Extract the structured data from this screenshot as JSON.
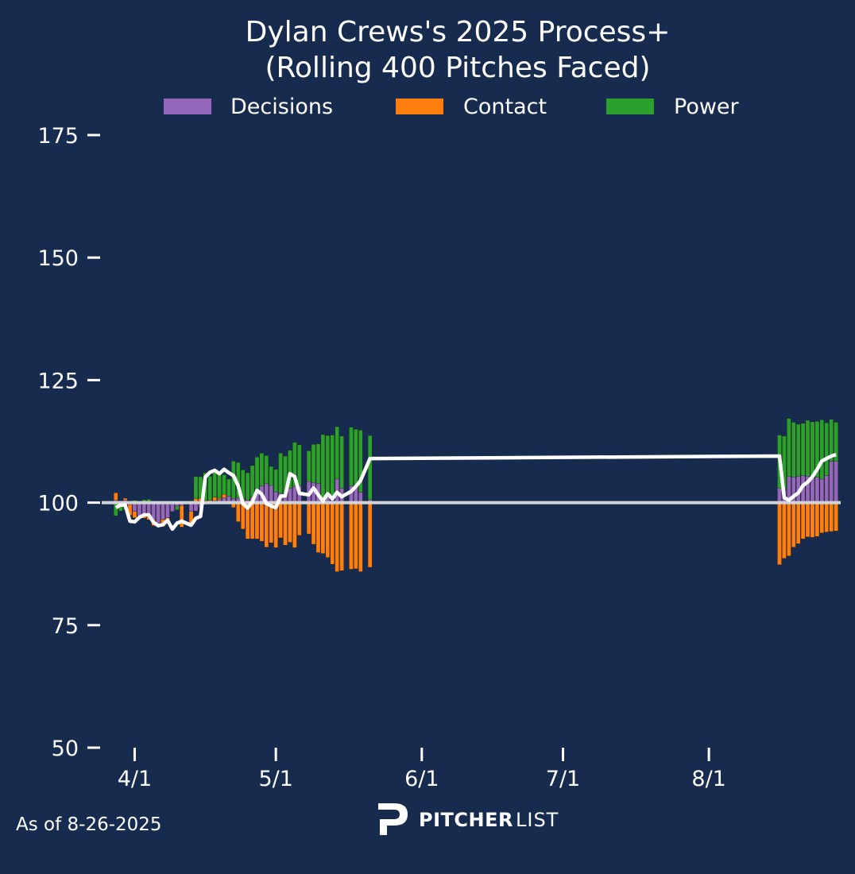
{
  "colors": {
    "background": "#172b4e",
    "decisions": "#9467bd",
    "contact": "#ff7f0e",
    "power": "#2ca02c",
    "line": "#ffffff",
    "baseline": "#d0d3d8"
  },
  "footer": {
    "as_of": "As of 8-26-2025",
    "brand_bold": "PITCHER",
    "brand_light": "LIST",
    "logo_icon": "pitcherlist-p-logo-icon"
  },
  "chart_data": {
    "type": "bar",
    "title_lines": [
      "Dylan Crews's 2025 Process+",
      "(Rolling 400 Pitches Faced)"
    ],
    "legend": [
      "Decisions",
      "Contact",
      "Power"
    ],
    "legend_placement": "top-center",
    "grid": false,
    "ylim": [
      50,
      175
    ],
    "yticks": [
      50,
      75,
      100,
      125,
      150,
      175
    ],
    "baseline": 100,
    "xlim": [
      "2025-03-25",
      "2025-08-29"
    ],
    "xticks": [
      {
        "date": "2025-04-01",
        "label": "4/1"
      },
      {
        "date": "2025-05-01",
        "label": "5/1"
      },
      {
        "date": "2025-06-01",
        "label": "6/1"
      },
      {
        "date": "2025-07-01",
        "label": "7/1"
      },
      {
        "date": "2025-08-01",
        "label": "8/1"
      }
    ],
    "game_dates": [
      "2025-03-28",
      "2025-03-29",
      "2025-03-30",
      "2025-03-31",
      "2025-04-01",
      "2025-04-02",
      "2025-04-03",
      "2025-04-04",
      "2025-04-05",
      "2025-04-06",
      "2025-04-07",
      "2025-04-08",
      "2025-04-09",
      "2025-04-10",
      "2025-04-11",
      "2025-04-13",
      "2025-04-14",
      "2025-04-15",
      "2025-04-16",
      "2025-04-17",
      "2025-04-18",
      "2025-04-19",
      "2025-04-20",
      "2025-04-21",
      "2025-04-22",
      "2025-04-23",
      "2025-04-24",
      "2025-04-25",
      "2025-04-26",
      "2025-04-27",
      "2025-04-28",
      "2025-04-29",
      "2025-04-30",
      "2025-05-01",
      "2025-05-02",
      "2025-05-03",
      "2025-05-04",
      "2025-05-05",
      "2025-05-06",
      "2025-05-08",
      "2025-05-09",
      "2025-05-10",
      "2025-05-11",
      "2025-05-12",
      "2025-05-13",
      "2025-05-14",
      "2025-05-15",
      "2025-05-17",
      "2025-05-18",
      "2025-05-19",
      "2025-05-21",
      "2025-08-16",
      "2025-08-17",
      "2025-08-18",
      "2025-08-19",
      "2025-08-20",
      "2025-08-21",
      "2025-08-22",
      "2025-08-23",
      "2025-08-24",
      "2025-08-25",
      "2025-08-26",
      "2025-08-27",
      "2025-08-28"
    ],
    "process_plus": [
      99.0,
      99.5,
      99.5,
      96.2,
      96.1,
      97.0,
      97.5,
      97.5,
      96.0,
      95.3,
      95.5,
      96.4,
      94.6,
      95.8,
      96.2,
      95.4,
      96.8,
      97.2,
      105.2,
      106.2,
      106.6,
      105.9,
      106.8,
      106.1,
      105.5,
      103.4,
      99.8,
      98.9,
      100.2,
      102.5,
      101.7,
      99.8,
      99.3,
      99.0,
      101.3,
      101.4,
      105.9,
      105.3,
      101.9,
      101.6,
      103.0,
      101.6,
      100.3,
      101.8,
      100.8,
      102.1,
      101.2,
      102.3,
      103.3,
      104.5,
      109.0,
      109.5,
      101.0,
      100.5,
      101.3,
      102.0,
      103.5,
      104.2,
      105.3,
      106.8,
      108.5,
      109.0,
      109.5,
      109.8
    ],
    "series": [
      {
        "name": "Decisions",
        "values": [
          100.5,
          100.4,
          100.5,
          99.6,
          98.2,
          97.3,
          97.2,
          97.1,
          96.5,
          95.8,
          96.6,
          96.9,
          98.2,
          99.3,
          99.4,
          98.2,
          98.3,
          99.0,
          99.6,
          100.3,
          100.4,
          100.6,
          101.0,
          101.3,
          100.8,
          100.9,
          100.8,
          100.5,
          101.1,
          101.8,
          103.4,
          103.9,
          103.5,
          102.2,
          101.9,
          101.6,
          102.9,
          103.3,
          103.5,
          104.3,
          104.1,
          103.9,
          100.7,
          101.8,
          101.5,
          104.8,
          102.9,
          103.4,
          103.7,
          102.1,
          100.6,
          102.9,
          102.7,
          105.3,
          105.2,
          105.4,
          105.5,
          105.4,
          105.0,
          105.2,
          104.8,
          105.5,
          108.4,
          108.4
        ]
      },
      {
        "name": "Contact",
        "values": [
          102.0,
          100.1,
          100.9,
          97.4,
          96.9,
          99.4,
          96.8,
          96.5,
          95.3,
          95.1,
          95.1,
          96.4,
          99.0,
          99.5,
          95.0,
          95.5,
          100.8,
          100.9,
          100.4,
          100.5,
          101.1,
          100.9,
          101.7,
          101.1,
          99.0,
          96.1,
          94.6,
          92.6,
          92.6,
          92.6,
          92.1,
          90.9,
          91.8,
          90.8,
          92.8,
          91.3,
          91.9,
          90.8,
          93.3,
          93.6,
          91.5,
          89.8,
          89.6,
          88.8,
          87.4,
          85.9,
          86.1,
          86.4,
          86.5,
          85.9,
          86.8,
          87.3,
          88.6,
          89.1,
          90.9,
          91.6,
          92.6,
          93.0,
          92.9,
          93.1,
          93.8,
          94.0,
          94.1,
          94.2
        ]
      },
      {
        "name": "Power",
        "values": [
          97.3,
          98.3,
          98.5,
          98.2,
          100.5,
          100.2,
          100.6,
          100.7,
          99.8,
          98.7,
          98.5,
          99.7,
          98.6,
          98.5,
          99.2,
          99.4,
          105.3,
          105.3,
          106.1,
          105.4,
          106.2,
          106.0,
          105.7,
          104.8,
          108.5,
          108.2,
          106.7,
          106.1,
          107.6,
          109.3,
          110.1,
          109.6,
          107.4,
          106.8,
          110.1,
          109.5,
          110.7,
          112.3,
          111.8,
          110.6,
          111.9,
          112.0,
          113.9,
          113.7,
          113.8,
          115.5,
          113.6,
          115.4,
          115.0,
          114.8,
          113.7,
          113.8,
          113.6,
          117.2,
          116.4,
          116.0,
          116.2,
          116.8,
          116.5,
          116.6,
          116.9,
          116.3,
          117.0,
          116.4
        ]
      }
    ]
  }
}
